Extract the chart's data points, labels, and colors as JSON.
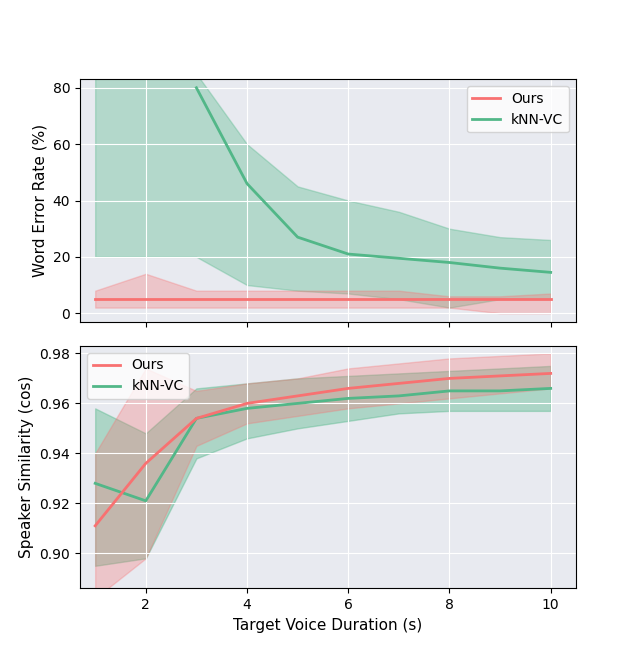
{
  "x_points_wer_knn": [
    3,
    4,
    5,
    6,
    7,
    8,
    9,
    10
  ],
  "x_points_wer_ours": [
    1,
    2,
    3,
    4,
    5,
    6,
    7,
    8,
    9,
    10
  ],
  "x_points_sim": [
    1,
    2,
    3,
    4,
    5,
    6,
    7,
    8,
    9,
    10
  ],
  "wer_ours_mean": [
    5.0,
    5.0,
    5.0,
    5.0,
    5.0,
    5.0,
    5.0,
    5.0,
    5.0,
    5.0
  ],
  "wer_ours_low": [
    2.0,
    2.0,
    2.0,
    2.0,
    2.0,
    2.0,
    2.0,
    2.0,
    0.0,
    0.0
  ],
  "wer_ours_high": [
    8.0,
    14.0,
    8.0,
    8.0,
    8.0,
    8.0,
    8.0,
    6.0,
    6.0,
    7.0
  ],
  "wer_knn_fill_x": [
    1,
    2,
    3,
    4,
    5,
    6,
    7,
    8,
    9,
    10
  ],
  "wer_knn_fill_low": [
    20.0,
    20.0,
    20.0,
    10.0,
    8.0,
    7.0,
    5.0,
    2.0,
    5.0,
    5.0
  ],
  "wer_knn_fill_high": [
    85.0,
    85.0,
    85.0,
    60.0,
    45.0,
    40.0,
    36.0,
    30.0,
    27.0,
    26.0
  ],
  "wer_knn_mean": [
    80.0,
    46.0,
    27.0,
    21.0,
    19.5,
    18.0,
    16.0,
    14.5
  ],
  "sim_ours_mean": [
    0.911,
    0.936,
    0.954,
    0.96,
    0.963,
    0.966,
    0.968,
    0.97,
    0.971,
    0.972
  ],
  "sim_ours_low": [
    0.882,
    0.898,
    0.943,
    0.952,
    0.955,
    0.958,
    0.96,
    0.962,
    0.964,
    0.966
  ],
  "sim_ours_high": [
    0.94,
    0.974,
    0.965,
    0.968,
    0.97,
    0.974,
    0.976,
    0.978,
    0.979,
    0.98
  ],
  "sim_knn_mean": [
    0.928,
    0.921,
    0.954,
    0.958,
    0.96,
    0.962,
    0.963,
    0.965,
    0.965,
    0.966
  ],
  "sim_knn_low": [
    0.895,
    0.898,
    0.938,
    0.946,
    0.95,
    0.953,
    0.956,
    0.957,
    0.957,
    0.957
  ],
  "sim_knn_high": [
    0.958,
    0.948,
    0.966,
    0.968,
    0.97,
    0.971,
    0.972,
    0.973,
    0.974,
    0.975
  ],
  "color_ours": "#f87171",
  "color_knn": "#52b788",
  "fill_alpha_knn": 0.35,
  "fill_alpha_ours": 0.3,
  "bg_color": "#e8eaf0",
  "wer_ylabel": "Word Error Rate (%)",
  "sim_ylabel": "Speaker Similarity (cos)",
  "xlabel": "Target Voice Duration (s)",
  "wer_ylim": [
    -3,
    83
  ],
  "wer_yticks": [
    0,
    20,
    40,
    60,
    80
  ],
  "sim_ylim": [
    0.886,
    0.983
  ],
  "sim_yticks": [
    0.9,
    0.92,
    0.94,
    0.96,
    0.98
  ],
  "xlim": [
    0.7,
    10.5
  ],
  "xticks": [
    2,
    4,
    6,
    8,
    10
  ]
}
